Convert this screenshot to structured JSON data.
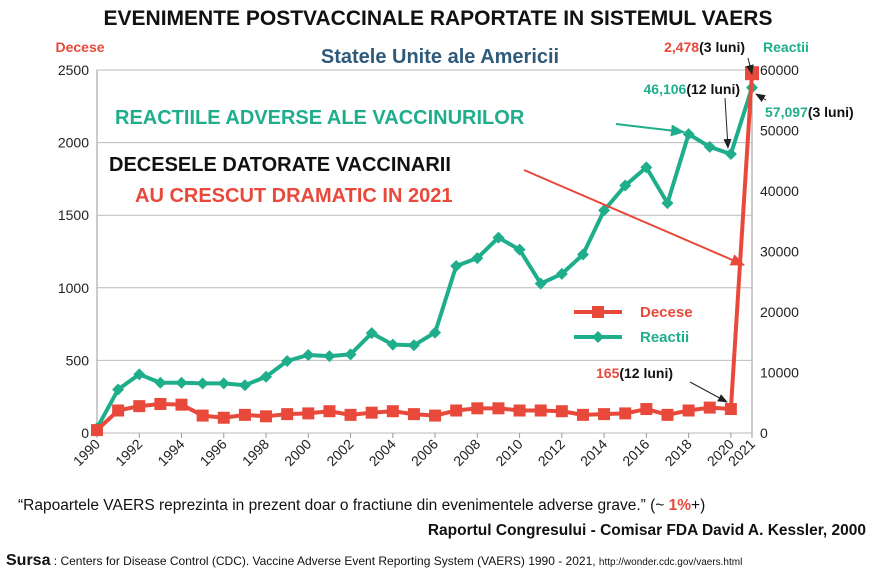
{
  "title": "EVENIMENTE POSTVACCINALE RAPORTATE IN SISTEMUL VAERS",
  "subtitle": "Statele Unite ale Americii",
  "colors": {
    "deaths": "#e8493b",
    "reactions": "#1fae8c",
    "title": "#111111",
    "subtitle": "#2f5a7a",
    "grid": "#bbbbbb"
  },
  "annotations": {
    "reactions_headline": "REACTIILE ADVERSE ALE VACCINURILOR",
    "deaths_headline_1": "DECESELE DATORATE VACCINARII",
    "deaths_headline_2": "AU CRESCUT DRAMATIC IN 2021",
    "deaths_2021_value": "2,478",
    "deaths_2021_period": "(3 luni)",
    "reactions_2020_value": "46,106",
    "reactions_2020_period": "(12 luni)",
    "reactions_2021_value": "57,097",
    "reactions_2021_period": "(3 luni)",
    "deaths_2020_value": "165",
    "deaths_2020_period": "(12 luni)"
  },
  "footer": {
    "quote": "“Rapoartele VAERS reprezinta in prezent doar o fractiune din evenimentele adverse grave.” (~ ",
    "quote_pct": "1%",
    "quote_end": "+)",
    "attribution": "Raportul Congresului - Comisar FDA David A. Kessler, 2000",
    "source_label": "Sursa",
    "source_text": " : Centers for Disease Control (CDC). Vaccine Adverse Event Reporting System (VAERS) 1990 - 2021, ",
    "source_url": "http://wonder.cdc.gov/vaers.html"
  },
  "chart_data": {
    "type": "line",
    "title": "EVENIMENTE POSTVACCINALE RAPORTATE IN SISTEMUL VAERS",
    "subtitle": "Statele Unite ale Americii",
    "x": [
      1990,
      1991,
      1992,
      1993,
      1994,
      1995,
      1996,
      1997,
      1998,
      1999,
      2000,
      2001,
      2002,
      2003,
      2004,
      2005,
      2006,
      2007,
      2008,
      2009,
      2010,
      2011,
      2012,
      2013,
      2014,
      2015,
      2016,
      2017,
      2018,
      2019,
      2020,
      2021
    ],
    "x_ticks": [
      "1990",
      "1992",
      "1994",
      "1996",
      "1998",
      "2000",
      "2002",
      "2004",
      "2006",
      "2008",
      "2010",
      "2012",
      "2014",
      "2016",
      "2018",
      "2020",
      "2021"
    ],
    "y_left": {
      "label": "Decese",
      "ylim": [
        0,
        2500
      ],
      "ticks": [
        "0",
        "500",
        "1000",
        "1500",
        "2000",
        "2500"
      ]
    },
    "y_right": {
      "label": "Reactii",
      "ylim": [
        0,
        60000
      ],
      "ticks": [
        "0",
        "10000",
        "20000",
        "30000",
        "40000",
        "50000",
        "60000"
      ]
    },
    "grid": true,
    "legend_placement": "center-right",
    "series": [
      {
        "name": "Decese",
        "axis": "left",
        "marker": "square",
        "values": [
          20,
          155,
          185,
          200,
          195,
          120,
          105,
          125,
          115,
          130,
          135,
          150,
          125,
          140,
          150,
          130,
          120,
          155,
          170,
          170,
          155,
          155,
          150,
          125,
          130,
          135,
          165,
          125,
          155,
          175,
          165,
          2478
        ]
      },
      {
        "name": "Reactii",
        "axis": "right",
        "marker": "diamond",
        "values": [
          800,
          7200,
          9700,
          8300,
          8300,
          8200,
          8200,
          7900,
          9300,
          11900,
          12900,
          12700,
          13000,
          16500,
          14600,
          14500,
          16600,
          27600,
          28900,
          32300,
          30300,
          24700,
          26300,
          29500,
          36800,
          40900,
          43900,
          38000,
          49400,
          47300,
          46106,
          57097
        ]
      }
    ]
  }
}
